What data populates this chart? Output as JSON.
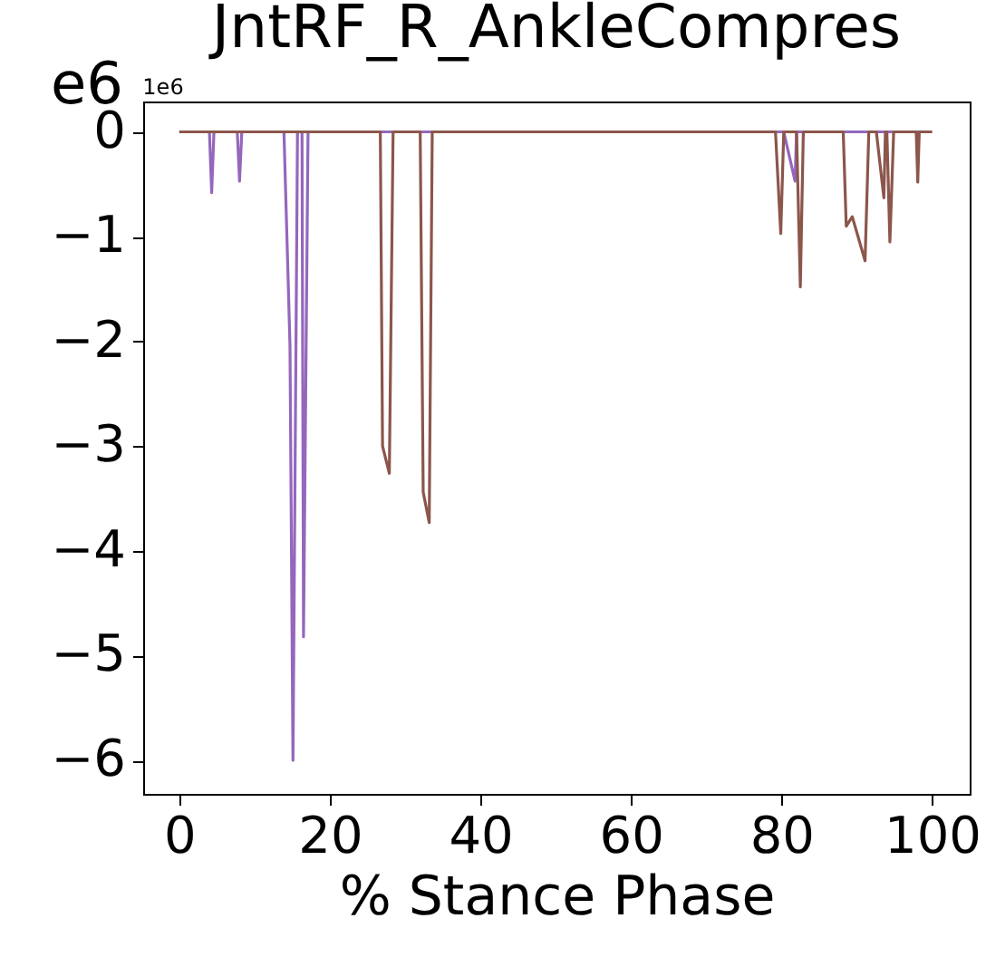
{
  "chart_data": {
    "type": "line",
    "title": "JntRF_R_AnkleCompres",
    "xlabel": "% Stance Phase",
    "annotations": [
      "e6",
      "1e6"
    ],
    "xlim": [
      -4.8,
      105
    ],
    "xticks": [
      0,
      20,
      40,
      60,
      80,
      100
    ],
    "ylim": [
      -6.32,
      0.29
    ],
    "yticks": [
      {
        "value": 0,
        "label": "0"
      },
      {
        "value": -1,
        "label": "−1"
      },
      {
        "value": -2,
        "label": "−2"
      },
      {
        "value": -3,
        "label": "−3"
      },
      {
        "value": -4,
        "label": "−4"
      },
      {
        "value": -5,
        "label": "−5"
      },
      {
        "value": -6,
        "label": "−6"
      }
    ],
    "grid": false,
    "marker": "none",
    "line_style": "solid",
    "series": [
      {
        "color": "#9467bd",
        "x": [
          0,
          4.0,
          4.3,
          4.6,
          7.7,
          8.0,
          8.3,
          13.9,
          14.7,
          15.1,
          15.7,
          16.3,
          16.5,
          17.1,
          80.3,
          81.8,
          82.0,
          100
        ],
        "values": [
          0,
          0,
          -0.58,
          0,
          0,
          -0.47,
          0,
          0,
          -2.03,
          -6.0,
          0,
          0,
          -4.82,
          0,
          0,
          -0.47,
          0,
          0
        ]
      },
      {
        "color": "#8c564b",
        "x": [
          0,
          26.7,
          27.0,
          27.9,
          28.4,
          32.0,
          32.4,
          33.2,
          33.6,
          79.2,
          79.9,
          80.3,
          82.0,
          82.5,
          82.9,
          88.2,
          88.6,
          89.4,
          91.1,
          91.6,
          92.6,
          93.6,
          93.8,
          94.0,
          94.4,
          94.9,
          97.9,
          98.1,
          98.3,
          100
        ],
        "values": [
          0,
          0,
          -3.0,
          -3.26,
          0,
          0,
          -3.44,
          -3.73,
          0,
          0,
          -0.97,
          0,
          0,
          -1.48,
          0,
          0,
          -0.9,
          -0.81,
          -1.23,
          0,
          0,
          -0.63,
          0,
          0,
          -1.05,
          0,
          0,
          -0.48,
          0,
          0
        ]
      }
    ]
  }
}
